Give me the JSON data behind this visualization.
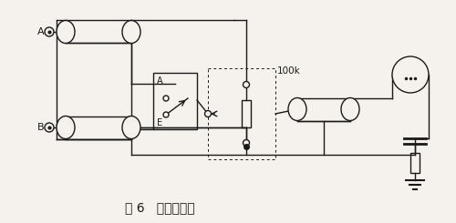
{
  "title": "图 6   双芯屏蔽线",
  "title_fontsize": 10,
  "bg_color": "#f5f2ed",
  "line_color": "#1a1a1a",
  "label_A": "A",
  "label_B": "B",
  "label_Aswitch": "A",
  "label_Eswitch": "E",
  "label_100k": "100k",
  "fig_width": 5.0,
  "fig_height": 2.45,
  "dpi": 100
}
